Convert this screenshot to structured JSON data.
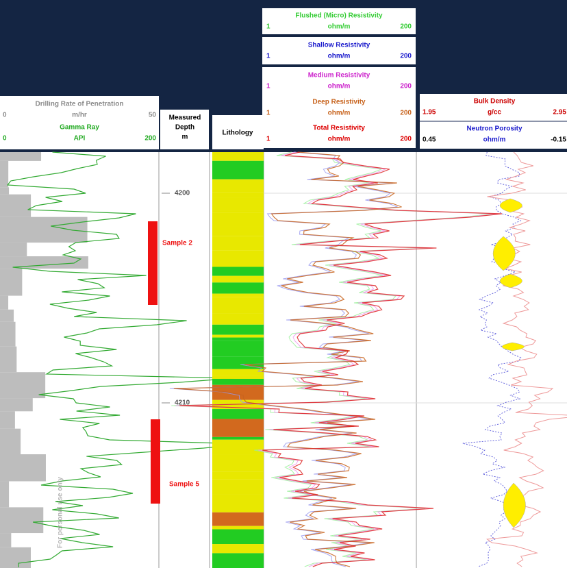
{
  "watermark": "For personal use only",
  "track1": {
    "curves": [
      {
        "name": "Drilling Rate of Penetration",
        "min": "0",
        "unit": "m/hr",
        "max": "50"
      },
      {
        "name": "Gamma Ray",
        "min": "0",
        "unit": "API",
        "max": "200"
      }
    ]
  },
  "depth": {
    "header": [
      "Measured",
      "Depth",
      "m"
    ],
    "labels": [
      "4200",
      "4210"
    ]
  },
  "lithology": {
    "header": "Lithology"
  },
  "resistivity": {
    "curves": [
      {
        "name": "Flushed (Micro) Resistivity",
        "min": "1",
        "unit": "ohm/m",
        "max": "200"
      },
      {
        "name": "Shallow Resistivity",
        "min": "1",
        "unit": "ohm/m",
        "max": "200"
      },
      {
        "name": "Medium Resistivity",
        "min": "1",
        "unit": "ohm/m",
        "max": "200"
      },
      {
        "name": "Deep Resistivity",
        "min": "1",
        "unit": "ohm/m",
        "max": "200"
      },
      {
        "name": "Total Resistivity",
        "min": "1",
        "unit": "ohm/m",
        "max": "200"
      }
    ]
  },
  "porosity": {
    "curves": [
      {
        "name": "Bulk Density",
        "min": "1.95",
        "unit": "g/cc",
        "max": "2.95"
      },
      {
        "name": "Neutron Porosity",
        "min": "0.45",
        "unit": "ohm/m",
        "max": "-0.15"
      }
    ]
  },
  "samples": [
    "Sample 2",
    "Sample 5"
  ]
}
